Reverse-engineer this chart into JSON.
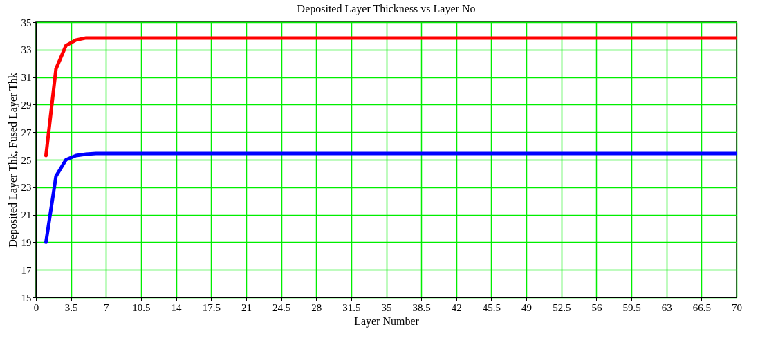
{
  "chart_data": {
    "type": "line",
    "title": "Deposited Layer Thickness vs Layer No",
    "xlabel": "Layer Number",
    "ylabel": "Deposited Layer Thk, Fused Layer Thk",
    "series": [
      {
        "color": "#ff0000",
        "x": [
          1,
          2,
          3,
          4,
          5,
          6,
          70
        ],
        "values": [
          25.3,
          31.6,
          33.3,
          33.7,
          33.85,
          33.85,
          33.85
        ]
      },
      {
        "color": "#0000ff",
        "x": [
          1,
          2,
          3,
          4,
          5,
          6,
          70
        ],
        "values": [
          19,
          23.8,
          25.0,
          25.3,
          25.4,
          25.45,
          25.45
        ]
      }
    ],
    "xlim": [
      0,
      70
    ],
    "xticks": [
      0,
      3.5,
      7,
      10.5,
      14,
      17.5,
      21,
      24.5,
      28,
      31.5,
      35,
      38.5,
      42,
      45.5,
      49,
      52.5,
      56,
      59.5,
      63,
      66.5,
      70
    ],
    "ylim": [
      15,
      35
    ],
    "yticks": [
      15,
      17,
      19,
      21,
      23,
      25,
      27,
      29,
      31,
      33,
      35
    ],
    "grid": true,
    "line_style": "solid"
  }
}
